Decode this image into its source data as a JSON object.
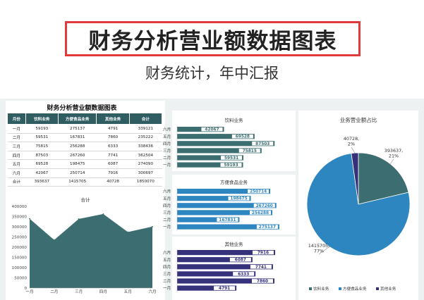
{
  "header": {
    "title": "财务分析营业额数据图表",
    "subtitle": "财务统计，年中汇报"
  },
  "table": {
    "title": "财务分析营业额数据图表",
    "headers": [
      "月份",
      "饮料业务",
      "方便食品业务",
      "其他业务",
      "合计"
    ],
    "rows": [
      [
        "一月",
        "59193",
        "275137",
        "4791",
        "339121"
      ],
      [
        "二月",
        "59531",
        "167831",
        "7860",
        "235222"
      ],
      [
        "三月",
        "75815",
        "256288",
        "6333",
        "338436"
      ],
      [
        "四月",
        "87503",
        "267260",
        "7741",
        "362504"
      ],
      [
        "五月",
        "69528",
        "198475",
        "6087",
        "274090"
      ],
      [
        "六月",
        "42067",
        "250714",
        "7916",
        "300697"
      ],
      [
        "合计",
        "393637",
        "1415705",
        "40728",
        "1850070"
      ]
    ]
  },
  "chart_data": [
    {
      "type": "area",
      "title": "合计",
      "categories": [
        "一月",
        "二月",
        "三月",
        "四月",
        "五月",
        "六月"
      ],
      "values": [
        339121,
        235222,
        338436,
        362504,
        274090,
        300697
      ],
      "ylim": [
        0,
        400000
      ],
      "yticks": [
        "400000",
        "350000",
        "300000",
        "250000",
        "200000",
        "150000",
        "100000",
        "50000",
        "0"
      ],
      "color": "#3c6e71"
    },
    {
      "type": "bar",
      "orientation": "horizontal",
      "title": "饮料业务",
      "categories": [
        "六月",
        "五月",
        "四月",
        "三月",
        "二月",
        "一月"
      ],
      "values": [
        42067,
        69528,
        87503,
        75815,
        59531,
        59193
      ],
      "xlim": [
        0,
        100000
      ],
      "color": "#3c6e71"
    },
    {
      "type": "bar",
      "orientation": "horizontal",
      "title": "方便食品业务",
      "categories": [
        "六月",
        "五月",
        "四月",
        "三月",
        "二月",
        "一月"
      ],
      "values": [
        250714,
        198475,
        267260,
        256288,
        167831,
        275137
      ],
      "xlim": [
        0,
        300000
      ],
      "color": "#2e86c1"
    },
    {
      "type": "bar",
      "orientation": "horizontal",
      "title": "其他业务",
      "categories": [
        "六月",
        "五月",
        "四月",
        "三月",
        "二月",
        "一月"
      ],
      "values": [
        7916,
        6087,
        7741,
        6333,
        7860,
        4791
      ],
      "xlim": [
        0,
        9000
      ],
      "color": "#35317a"
    },
    {
      "type": "pie",
      "title": "业务营业额占比",
      "labels": [
        "饮料业务",
        "方便食品业务",
        "其他业务"
      ],
      "values": [
        393637,
        1415705,
        40728
      ],
      "slice_labels": [
        "393637,\n21%",
        "1415705,\n77%",
        "40728,\n2%"
      ],
      "colors": [
        "#3c6e71",
        "#2e86c1",
        "#35317a"
      ],
      "legend": "bottom"
    }
  ]
}
